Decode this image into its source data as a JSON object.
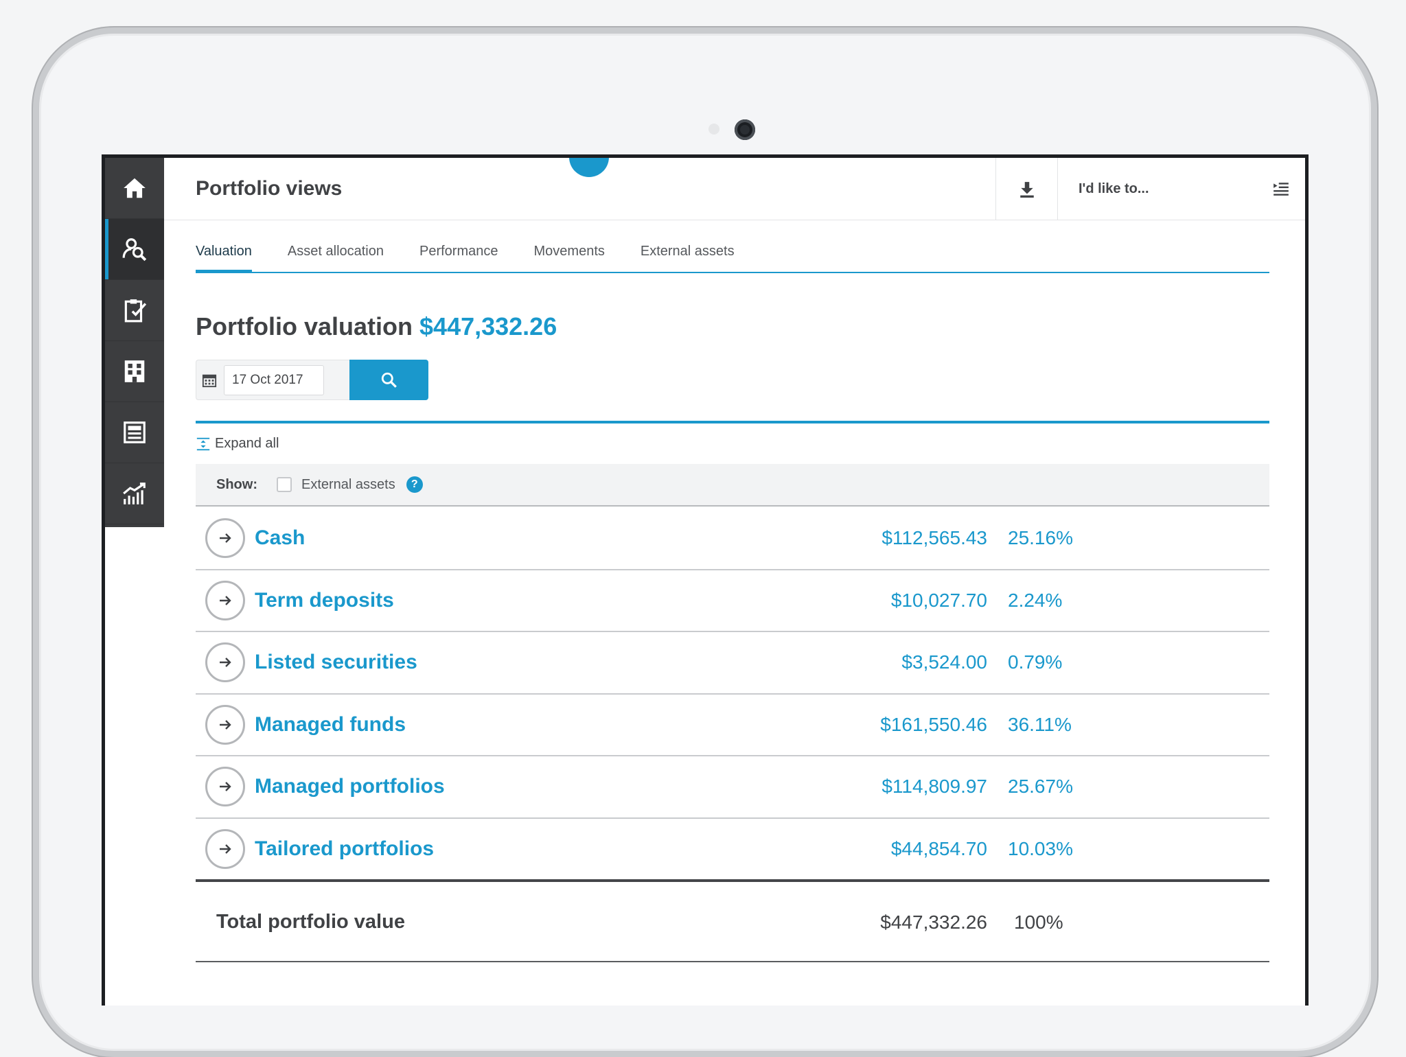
{
  "header": {
    "title": "Portfolio views",
    "action_label": "I'd like to..."
  },
  "sidebar": {
    "items": [
      {
        "icon": "home-icon"
      },
      {
        "icon": "portfolio-search-icon"
      },
      {
        "icon": "clipboard-check-icon"
      },
      {
        "icon": "building-icon"
      },
      {
        "icon": "newspaper-icon"
      },
      {
        "icon": "growth-chart-icon"
      }
    ],
    "active_index": 1
  },
  "tabs": [
    {
      "label": "Valuation"
    },
    {
      "label": "Asset allocation"
    },
    {
      "label": "Performance"
    },
    {
      "label": "Movements"
    },
    {
      "label": "External assets"
    }
  ],
  "valuation": {
    "heading": "Portfolio valuation",
    "amount": "$447,332.26",
    "date": "17 Oct 2017"
  },
  "controls": {
    "expand_all": "Expand all",
    "show_label": "Show:",
    "external_assets_label": "External assets",
    "help_glyph": "?"
  },
  "rows": [
    {
      "name": "Cash",
      "value": "$112,565.43",
      "pct": "25.16%"
    },
    {
      "name": "Term deposits",
      "value": "$10,027.70",
      "pct": "2.24%"
    },
    {
      "name": "Listed securities",
      "value": "$3,524.00",
      "pct": "0.79%"
    },
    {
      "name": "Managed funds",
      "value": "$161,550.46",
      "pct": "36.11%"
    },
    {
      "name": "Managed portfolios",
      "value": "$114,809.97",
      "pct": "25.67%"
    },
    {
      "name": "Tailored portfolios",
      "value": "$44,854.70",
      "pct": "10.03%"
    }
  ],
  "total": {
    "label": "Total portfolio value",
    "value": "$447,332.26",
    "pct": "100%"
  },
  "colors": {
    "accent": "#1a98cc",
    "sidebar": "#3c3d3f",
    "text": "#404245"
  }
}
